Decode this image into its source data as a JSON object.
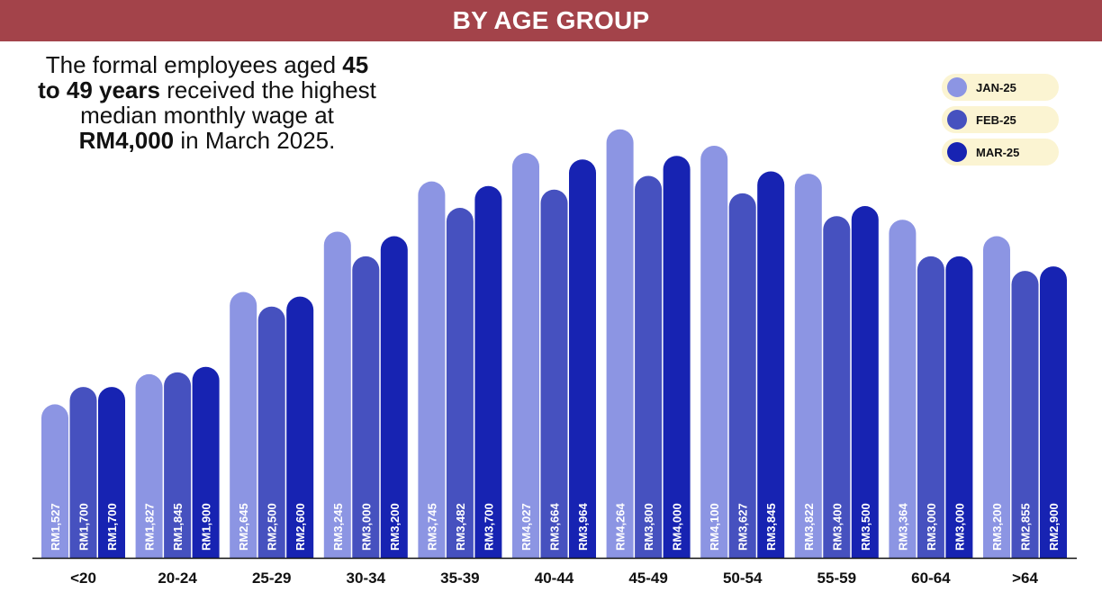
{
  "header": {
    "title": "BY AGE GROUP"
  },
  "annotation": {
    "part1": "The formal employees aged ",
    "bold1": "45 to 49 years",
    "part2": " received the highest median monthly wage at ",
    "bold2": "RM4,000",
    "part3": " in March 2025."
  },
  "colors": {
    "header_bg": "#a3434a",
    "series": [
      "#8c95e3",
      "#4651bf",
      "#1723b2"
    ],
    "legend_bg": "#fbf4d2",
    "axis": "#111111"
  },
  "chart_data": {
    "type": "bar",
    "title": "",
    "xlabel": "",
    "ylabel": "",
    "categories": [
      "<20",
      "20-24",
      "25-29",
      "30-34",
      "35-39",
      "40-44",
      "45-49",
      "50-54",
      "55-59",
      "60-64",
      ">64"
    ],
    "series": [
      {
        "name": "JAN-25",
        "values": [
          1527,
          1827,
          2645,
          3245,
          3745,
          4027,
          4264,
          4100,
          3822,
          3364,
          3200
        ],
        "labels": [
          "RM1,527",
          "RM1,827",
          "RM2,645",
          "RM3,245",
          "RM3,745",
          "RM4,027",
          "RM4,264",
          "RM4,100",
          "RM3,822",
          "RM3,364",
          "RM3,200"
        ]
      },
      {
        "name": "FEB-25",
        "values": [
          1700,
          1845,
          2500,
          3000,
          3482,
          3664,
          3800,
          3627,
          3400,
          3000,
          2855
        ],
        "labels": [
          "RM1,700",
          "RM1,845",
          "RM2,500",
          "RM3,000",
          "RM3,482",
          "RM3,664",
          "RM3,800",
          "RM3,627",
          "RM3,400",
          "RM3,000",
          "RM2,855"
        ]
      },
      {
        "name": "MAR-25",
        "values": [
          1700,
          1900,
          2600,
          3200,
          3700,
          3964,
          4000,
          3845,
          3500,
          3000,
          2900
        ],
        "labels": [
          "RM1,700",
          "RM1,900",
          "RM2,600",
          "RM3,200",
          "RM3,700",
          "RM3,964",
          "RM4,000",
          "RM3,845",
          "RM3,500",
          "RM3,000",
          "RM2,900"
        ]
      }
    ],
    "legend_position": "top-right",
    "grid": false
  }
}
